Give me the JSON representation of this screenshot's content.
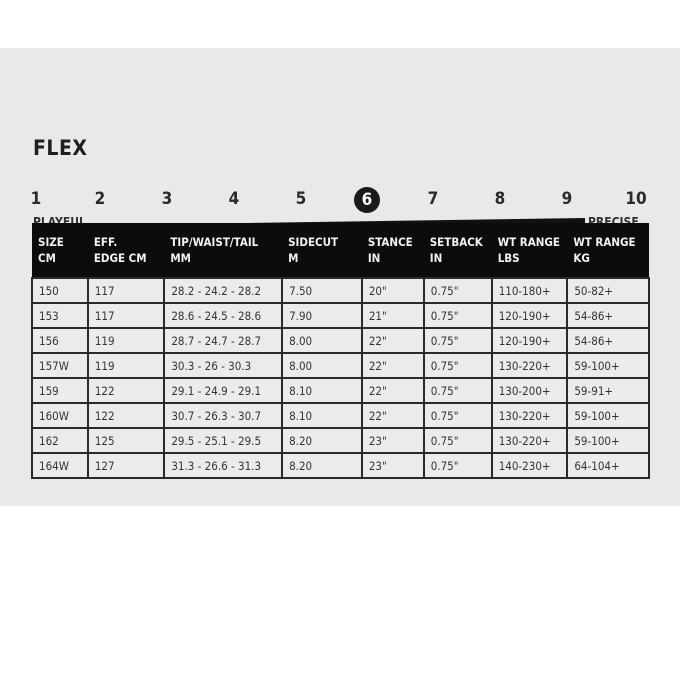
{
  "flex": {
    "title": "FLEX",
    "scale": [
      "1",
      "2",
      "3",
      "4",
      "5",
      "6",
      "7",
      "8",
      "9",
      "10"
    ],
    "selected": "6",
    "left_label": "PLAYFUL",
    "right_label": "PRECISE"
  },
  "table": {
    "headers": [
      [
        "SIZE",
        "CM"
      ],
      [
        "EFF.",
        "EDGE CM"
      ],
      [
        "TIP/WAIST/TAIL",
        "MM"
      ],
      [
        "SIDECUT",
        "M"
      ],
      [
        "STANCE",
        "IN"
      ],
      [
        "SETBACK",
        "IN"
      ],
      [
        "WT RANGE",
        "LBS"
      ],
      [
        "WT RANGE",
        "KG"
      ]
    ],
    "rows": [
      [
        "150",
        "117",
        "28.2 - 24.2 - 28.2",
        "7.50",
        "20\"",
        "0.75\"",
        "110-180+",
        "50-82+"
      ],
      [
        "153",
        "117",
        "28.6 - 24.5 - 28.6",
        "7.90",
        "21\"",
        "0.75\"",
        "120-190+",
        "54-86+"
      ],
      [
        "156",
        "119",
        "28.7 - 24.7 - 28.7",
        "8.00",
        "22\"",
        "0.75\"",
        "120-190+",
        "54-86+"
      ],
      [
        "157W",
        "119",
        "30.3 - 26 - 30.3",
        "8.00",
        "22\"",
        "0.75\"",
        "130-220+",
        "59-100+"
      ],
      [
        "159",
        "122",
        "29.1 - 24.9 - 29.1",
        "8.10",
        "22\"",
        "0.75\"",
        "130-200+",
        "59-91+"
      ],
      [
        "160W",
        "122",
        "30.7 - 26.3 - 30.7",
        "8.10",
        "22\"",
        "0.75\"",
        "130-220+",
        "59-100+"
      ],
      [
        "162",
        "125",
        "29.5 - 25.1 - 29.5",
        "8.20",
        "23\"",
        "0.75\"",
        "130-220+",
        "59-100+"
      ],
      [
        "164W",
        "127",
        "31.3 - 26.6 - 31.3",
        "8.20",
        "23\"",
        "0.75\"",
        "140-230+",
        "64-104+"
      ]
    ]
  }
}
